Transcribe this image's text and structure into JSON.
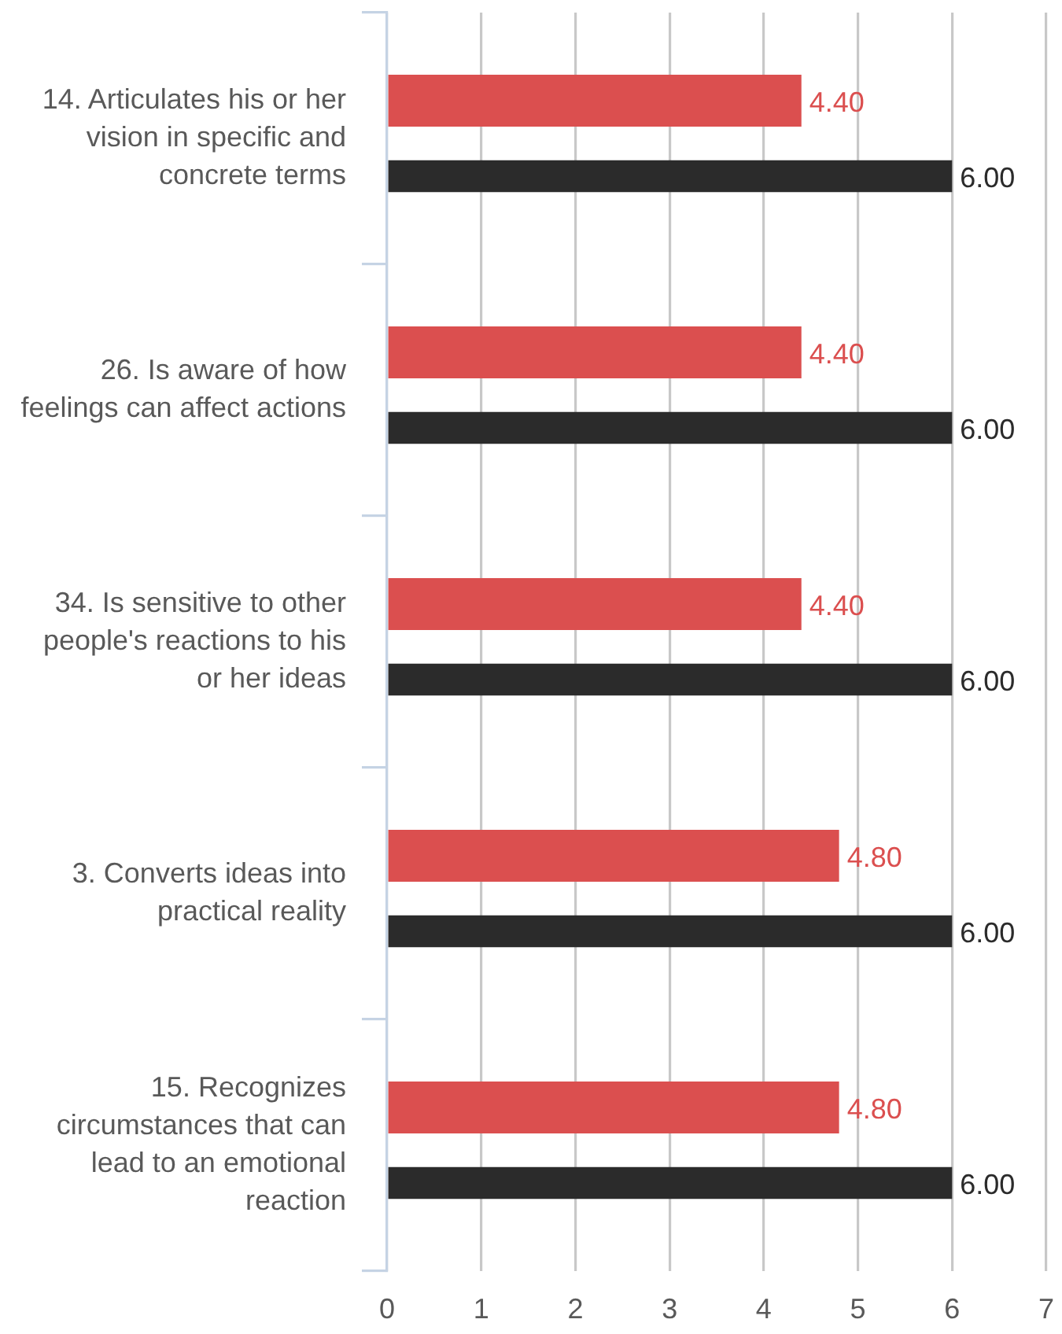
{
  "chart_data": {
    "type": "bar",
    "orientation": "horizontal",
    "categories": [
      "14. Articulates his or her vision in specific and concrete terms",
      "26. Is aware of how feelings can affect actions",
      "34. Is sensitive to other people's reactions to his or her ideas",
      "3. Converts ideas into practical reality",
      "15. Recognizes circumstances that can lead to an emotional reaction"
    ],
    "series": [
      {
        "color": "#db4f4f",
        "values": [
          4.4,
          4.4,
          4.4,
          4.8,
          4.8
        ],
        "value_labels": [
          "4.40",
          "4.40",
          "4.40",
          "4.80",
          "4.80"
        ]
      },
      {
        "color": "#2b2b2b",
        "values": [
          6,
          6,
          6,
          6,
          6
        ],
        "value_labels": [
          "6.00",
          "6.00",
          "6.00",
          "6.00",
          "6.00"
        ]
      }
    ],
    "xlim": [
      0,
      7
    ],
    "xticks": [
      0,
      1,
      2,
      3,
      4,
      5,
      6,
      7
    ],
    "grid": "x"
  }
}
